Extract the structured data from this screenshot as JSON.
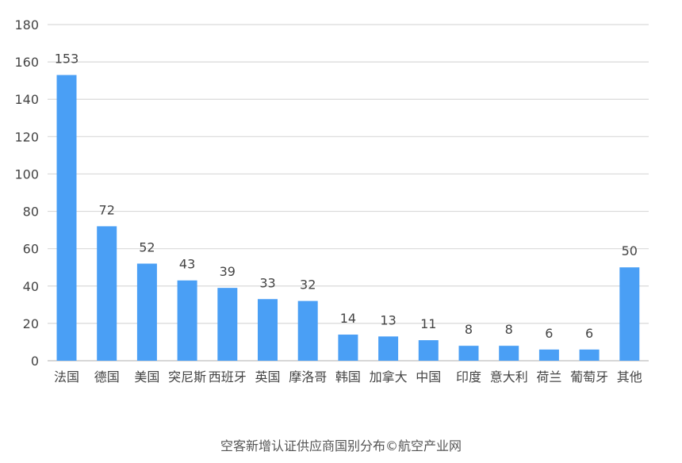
{
  "chart_data": {
    "type": "bar",
    "title": "",
    "xlabel": "",
    "ylabel": "",
    "categories": [
      "法国",
      "德国",
      "美国",
      "突尼斯",
      "西班牙",
      "英国",
      "摩洛哥",
      "韩国",
      "加拿大",
      "中国",
      "印度",
      "意大利",
      "荷兰",
      "葡萄牙",
      "其他"
    ],
    "values": [
      153,
      72,
      52,
      43,
      39,
      33,
      32,
      14,
      13,
      11,
      8,
      8,
      6,
      6,
      50
    ],
    "ylim": [
      0,
      180
    ],
    "yticks": [
      0,
      20,
      40,
      60,
      80,
      100,
      120,
      140,
      160,
      180
    ],
    "grid": true,
    "legend": "none",
    "bar_color": "#4A9FF5",
    "grid_color": "#D9D9D9",
    "text_color": "#444444"
  },
  "caption": "空客新增认证供应商国别分布©航空产业网"
}
